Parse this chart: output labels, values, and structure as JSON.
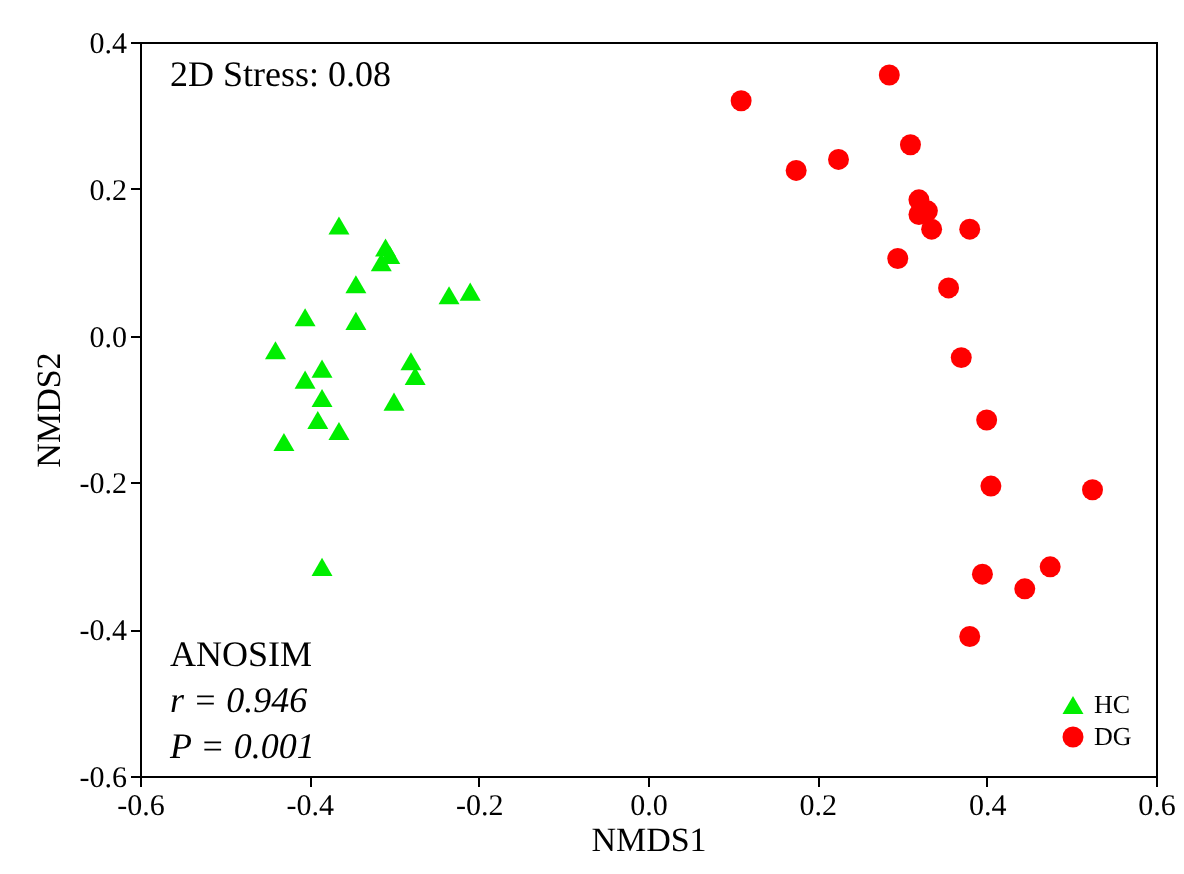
{
  "chart_data": {
    "type": "scatter",
    "xlabel": "NMDS1",
    "ylabel": "NMDS2",
    "xlim": [
      -0.6,
      0.6
    ],
    "ylim": [
      -0.6,
      0.4
    ],
    "xticks": [
      -0.6,
      -0.4,
      -0.2,
      {
        "value": 0,
        "label": "0.0"
      },
      0.2,
      0.4,
      0.6
    ],
    "yticks": [
      -0.6,
      -0.4,
      -0.2,
      {
        "value": 0,
        "label": "0.0"
      },
      0.2,
      0.4
    ],
    "grid": false,
    "legend": "bottom right",
    "annotations": [
      "2D Stress: 0.08",
      "ANOSIM",
      "r = 0.946",
      "P = 0.001"
    ],
    "series": [
      {
        "name": "HC",
        "color": "#00ee00",
        "marker": "triangle",
        "x": [
          -0.44,
          -0.43,
          -0.405,
          -0.405,
          -0.385,
          -0.385,
          -0.39,
          -0.365,
          -0.365,
          -0.345,
          -0.345,
          -0.31,
          -0.315,
          -0.305,
          -0.3,
          -0.28,
          -0.275,
          -0.235,
          -0.21,
          -0.385
        ],
        "values": [
          -0.02,
          -0.145,
          0.025,
          -0.06,
          -0.045,
          -0.085,
          -0.115,
          -0.13,
          0.15,
          0.07,
          0.02,
          0.12,
          0.1,
          0.11,
          -0.09,
          -0.035,
          -0.055,
          0.055,
          0.06,
          -0.315
        ]
      },
      {
        "name": "DG",
        "color": "#ff0000",
        "marker": "circle",
        "x": [
          0.11,
          0.175,
          0.225,
          0.285,
          0.31,
          0.32,
          0.32,
          0.33,
          0.335,
          0.38,
          0.295,
          0.355,
          0.37,
          0.4,
          0.405,
          0.525,
          0.475,
          0.395,
          0.445,
          0.38
        ],
        "values": [
          0.32,
          0.225,
          0.24,
          0.355,
          0.26,
          0.185,
          0.165,
          0.17,
          0.145,
          0.145,
          0.105,
          0.065,
          -0.03,
          -0.115,
          -0.205,
          -0.21,
          -0.315,
          -0.325,
          -0.345,
          -0.41
        ]
      }
    ]
  }
}
